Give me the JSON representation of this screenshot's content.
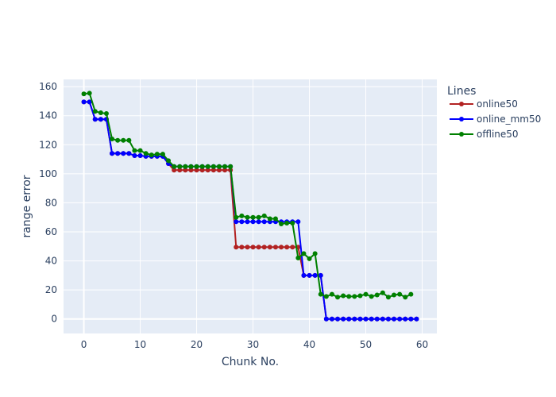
{
  "chart_data": {
    "type": "line",
    "xlabel": "Chunk No.",
    "ylabel": "range error",
    "xlim": [
      -3.6,
      62.6
    ],
    "ylim": [
      -10,
      165
    ],
    "xticks": [
      0,
      10,
      20,
      30,
      40,
      50,
      60
    ],
    "yticks": [
      0,
      20,
      40,
      60,
      80,
      100,
      120,
      140,
      160
    ],
    "grid": true,
    "legend": {
      "title": "Lines",
      "position": "top-right"
    },
    "colors": {
      "plot_bg": "#e5ecf6",
      "grid": "#ffffff",
      "text": "#2a3f5f"
    },
    "series": [
      {
        "name": "online50",
        "color": "#b22222",
        "values": [
          149.5,
          149.5,
          137.5,
          137.5,
          137.5,
          114,
          114,
          114,
          114,
          112.5,
          112.5,
          112,
          112,
          112,
          112,
          107,
          102.5,
          102.5,
          102.5,
          102.5,
          102.5,
          102.5,
          102.5,
          102.5,
          102.5,
          102.5,
          102.5,
          49.5,
          49.5,
          49.5,
          49.5,
          49.5,
          49.5,
          49.5,
          49.5,
          49.5,
          49.5,
          49.5,
          49.5,
          30,
          30,
          30,
          30,
          0,
          0,
          0,
          0,
          0,
          0,
          0,
          0,
          0,
          0,
          0,
          0,
          0,
          0,
          0,
          0,
          0
        ]
      },
      {
        "name": "online_mm50",
        "color": "#0000ff",
        "values": [
          149.5,
          149.5,
          137.5,
          137.5,
          137.5,
          114,
          114,
          114,
          114,
          112.5,
          112.5,
          112,
          112,
          112,
          112,
          107,
          105,
          105,
          105,
          105,
          105,
          105,
          105,
          105,
          105,
          105,
          105,
          67,
          67,
          67,
          67,
          67,
          67,
          67,
          67,
          67,
          67,
          67,
          67,
          30,
          30,
          30,
          30,
          0,
          0,
          0,
          0,
          0,
          0,
          0,
          0,
          0,
          0,
          0,
          0,
          0,
          0,
          0,
          0,
          0
        ]
      },
      {
        "name": "offline50",
        "color": "#008000",
        "values": [
          155,
          155.5,
          143,
          142,
          141.5,
          124,
          123,
          123,
          123,
          116,
          116,
          114,
          113,
          113.5,
          113.5,
          109,
          105,
          105,
          105,
          105,
          105,
          105,
          105,
          105,
          105,
          105,
          105,
          70,
          71,
          70,
          70,
          70,
          71,
          69,
          69,
          65.5,
          66,
          66,
          42,
          45,
          41.5,
          45,
          17,
          15.5,
          17,
          15,
          16,
          15.5,
          15.5,
          16,
          17,
          15.5,
          16.5,
          18,
          15,
          16.5,
          17,
          15,
          17
        ]
      }
    ]
  }
}
